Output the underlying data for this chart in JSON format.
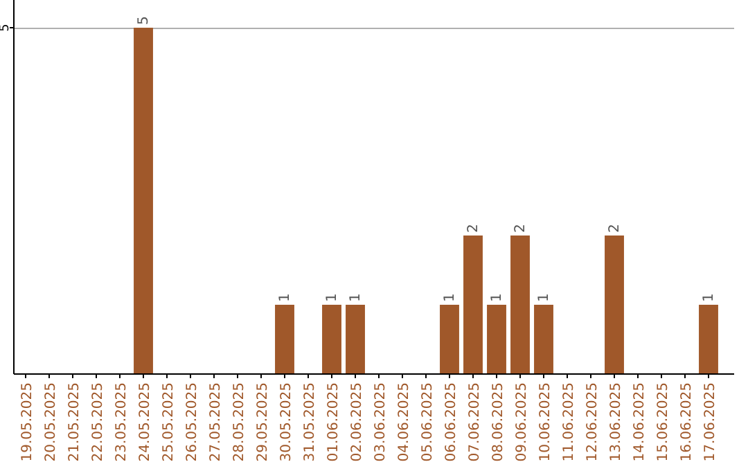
{
  "chart_data": {
    "type": "bar",
    "categories": [
      "19.05.2025",
      "20.05.2025",
      "21.05.2025",
      "22.05.2025",
      "23.05.2025",
      "24.05.2025",
      "25.05.2025",
      "26.05.2025",
      "27.05.2025",
      "28.05.2025",
      "29.05.2025",
      "30.05.2025",
      "31.05.2025",
      "01.06.2025",
      "02.06.2025",
      "03.06.2025",
      "04.06.2025",
      "05.06.2025",
      "06.06.2025",
      "07.06.2025",
      "08.06.2025",
      "09.06.2025",
      "10.06.2025",
      "11.06.2025",
      "12.06.2025",
      "13.06.2025",
      "14.06.2025",
      "15.06.2025",
      "16.06.2025",
      "17.06.2025"
    ],
    "values": [
      null,
      null,
      null,
      null,
      null,
      5,
      null,
      null,
      null,
      null,
      null,
      1,
      null,
      1,
      1,
      null,
      null,
      null,
      1,
      2,
      1,
      2,
      1,
      null,
      null,
      2,
      null,
      null,
      null,
      1
    ],
    "color": "#a0582a",
    "ylim": [
      0,
      5
    ],
    "yticks": [
      5
    ],
    "ref_lines": [
      {
        "axis": "y",
        "value": 5,
        "color": "#b0b0b0"
      }
    ],
    "data_labels": true
  }
}
